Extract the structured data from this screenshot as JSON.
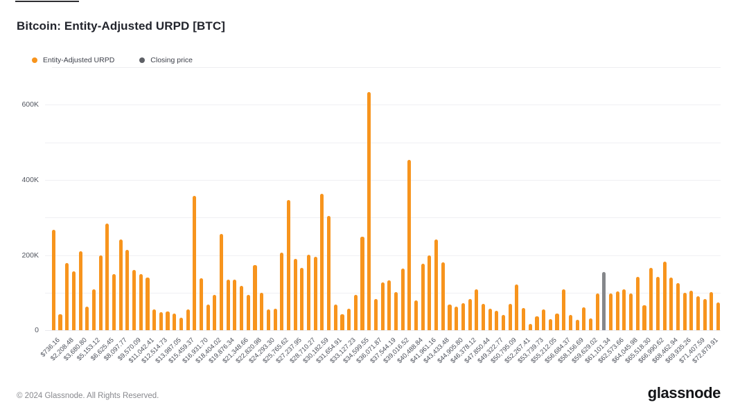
{
  "page": {
    "title": "Bitcoin: Entity-Adjusted URPD [BTC]"
  },
  "legend": {
    "items": [
      {
        "label": "Entity-Adjusted URPD",
        "color": "#F7941D"
      },
      {
        "label": "Closing price",
        "color": "#5E6066"
      }
    ]
  },
  "footer": {
    "copyright": "© 2024 Glassnode. All Rights Reserved.",
    "brand": "glassnode"
  },
  "chart_data": {
    "type": "bar",
    "title": "Bitcoin: Entity-Adjusted URPD [BTC]",
    "legend_position": "top-left",
    "grid": "horizontal every 100K",
    "ylim": [
      0,
      660000
    ],
    "y_ticks": [
      {
        "value": 0,
        "label": "0"
      },
      {
        "value": 200000,
        "label": "200K"
      },
      {
        "value": 400000,
        "label": "400K"
      },
      {
        "value": 600000,
        "label": "600K"
      }
    ],
    "gridline_values": [
      0,
      100000,
      200000,
      300000,
      400000,
      500000,
      600000
    ],
    "bar_color": "#F7941D",
    "closing_bar_color": "#85878B",
    "closing_price_bar_index": 82,
    "x_tick_labels": [
      "$736.16",
      "$2,208.48",
      "$3,680.80",
      "$5,153.12",
      "$6,625.45",
      "$8,097.77",
      "$9,570.09",
      "$11,042.41",
      "$12,514.73",
      "$13,987.05",
      "$15,459.37",
      "$16,931.70",
      "$18,404.02",
      "$19,876.34",
      "$21,348.66",
      "$22,820.98",
      "$24,293.30",
      "$25,765.62",
      "$27,237.95",
      "$28,710.27",
      "$30,182.59",
      "$31,654.91",
      "$33,127.23",
      "$34,599.55",
      "$36,071.87",
      "$37,544.19",
      "$39,016.52",
      "$40,488.84",
      "$41,961.16",
      "$43,433.48",
      "$44,905.80",
      "$46,378.12",
      "$47,850.44",
      "$49,322.77",
      "$50,795.09",
      "$52,267.41",
      "$53,739.73",
      "$55,212.05",
      "$56,684.37",
      "$58,156.69",
      "$59,629.02",
      "$61,101.34",
      "$62,573.66",
      "$64,045.98",
      "$65,518.30",
      "$66,990.62",
      "$68,462.94",
      "$69,935.26",
      "$71,407.59",
      "$72,879.91"
    ],
    "series": [
      {
        "name": "Entity-Adjusted URPD",
        "values": [
          268000,
          43000,
          180000,
          157000,
          210000,
          63000,
          110000,
          200000,
          284000,
          149000,
          241000,
          214000,
          161000,
          150000,
          140000,
          55000,
          49000,
          50000,
          45000,
          33000,
          55000,
          357000,
          138000,
          69000,
          94000,
          257000,
          135000,
          135000,
          118000,
          94000,
          173000,
          100000,
          55000,
          58000,
          206000,
          346000,
          190000,
          167000,
          202000,
          195000,
          364000,
          304000,
          68000,
          43000,
          58000,
          94000,
          250000,
          634000,
          83000,
          128000,
          134000,
          101000,
          165000,
          454000,
          79000,
          177000,
          200000,
          241000,
          181000,
          69000,
          64000,
          72000,
          84000,
          109000,
          70000,
          57000,
          53000,
          41000,
          71000,
          123000,
          59000,
          17000,
          38000,
          56000,
          30000,
          44000,
          109000,
          41000,
          29000,
          61000,
          32000,
          99000,
          156000,
          98000,
          103000,
          110000,
          98000,
          143000,
          66000,
          167000,
          143000,
          183000,
          140000,
          125000,
          100000,
          105000,
          91000,
          83000,
          102000,
          74000
        ]
      },
      {
        "name": "Closing price",
        "note_bar_index": 82
      }
    ]
  }
}
